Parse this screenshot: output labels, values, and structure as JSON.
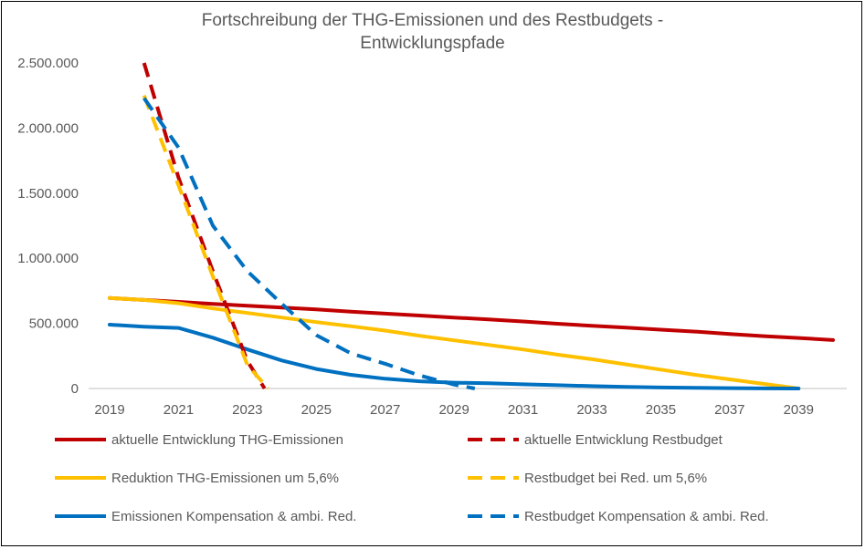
{
  "chart_data": {
    "type": "line",
    "title": "Fortschreibung der THG-Emissionen und des Restbudgets - Entwicklungspfade",
    "title_lines": [
      "Fortschreibung der THG-Emissionen und des Restbudgets -",
      "Entwicklungspfade"
    ],
    "xlabel": "",
    "ylabel": "",
    "xlim": [
      2019,
      2040
    ],
    "ylim": [
      0,
      2500000
    ],
    "x_ticks": [
      2019,
      2021,
      2023,
      2025,
      2027,
      2029,
      2031,
      2033,
      2035,
      2037,
      2039
    ],
    "x_tick_labels": [
      "2019",
      "2021",
      "2023",
      "2025",
      "2027",
      "2029",
      "2031",
      "2033",
      "2035",
      "2037",
      "2039"
    ],
    "y_ticks": [
      0,
      500000,
      1000000,
      1500000,
      2000000,
      2500000
    ],
    "y_tick_labels": [
      "0",
      "500.000",
      "1.000.000",
      "1.500.000",
      "2.000.000",
      "2.500.000"
    ],
    "grid": false,
    "legend_position": "bottom",
    "series": [
      {
        "name": "aktuelle Entwicklung  THG-Emissionen",
        "color": "#C00000",
        "style": "solid",
        "x": [
          2019,
          2020,
          2021,
          2022,
          2023,
          2024,
          2025,
          2026,
          2027,
          2028,
          2029,
          2030,
          2031,
          2032,
          2033,
          2034,
          2035,
          2036,
          2037,
          2038,
          2039,
          2040
        ],
        "values": [
          695000,
          680000,
          665000,
          650000,
          635000,
          622000,
          608000,
          590000,
          575000,
          560000,
          545000,
          530000,
          515000,
          497000,
          482000,
          467000,
          452000,
          437000,
          418000,
          402000,
          388000,
          372000
        ]
      },
      {
        "name": "aktuelle Entwicklung Restbudget",
        "color": "#C00000",
        "style": "dashed",
        "x": [
          2020,
          2021,
          2022,
          2023,
          2023.5
        ],
        "values": [
          2500000,
          1620000,
          900000,
          210000,
          0
        ]
      },
      {
        "name": "Reduktion THG-Emissionen um 5,6%",
        "color": "#FFC000",
        "style": "solid",
        "x": [
          2019,
          2020,
          2021,
          2022,
          2023,
          2024,
          2025,
          2026,
          2027,
          2028,
          2029,
          2030,
          2031,
          2032,
          2033,
          2034,
          2035,
          2036,
          2037,
          2038,
          2039
        ],
        "values": [
          695000,
          680000,
          655000,
          615000,
          580000,
          545000,
          510000,
          478000,
          445000,
          405000,
          370000,
          335000,
          300000,
          260000,
          225000,
          185000,
          145000,
          105000,
          70000,
          35000,
          0
        ]
      },
      {
        "name": "Restbudget bei Red. um 5,6%",
        "color": "#FFC000",
        "style": "dashed",
        "x": [
          2020,
          2021,
          2022,
          2023,
          2023.6
        ],
        "values": [
          2250000,
          1560000,
          860000,
          180000,
          0
        ]
      },
      {
        "name": "Emissionen Kompensation & ambi. Red.",
        "color": "#0070C0",
        "style": "solid",
        "x": [
          2019,
          2020,
          2021,
          2022,
          2023,
          2024,
          2025,
          2026,
          2027,
          2028,
          2029,
          2030,
          2031,
          2032,
          2033,
          2034,
          2035,
          2036,
          2037,
          2038,
          2039
        ],
        "values": [
          490000,
          475000,
          465000,
          390000,
          300000,
          215000,
          150000,
          105000,
          75000,
          55000,
          45000,
          40000,
          32000,
          25000,
          18000,
          12000,
          8000,
          5000,
          3000,
          1000,
          0
        ]
      },
      {
        "name": "Restbudget Kompensation & ambi. Red.",
        "color": "#0070C0",
        "style": "dashed",
        "x": [
          2020,
          2021,
          2022,
          2023,
          2024,
          2025,
          2026,
          2027,
          2028,
          2029,
          2029.6
        ],
        "values": [
          2230000,
          1850000,
          1250000,
          900000,
          650000,
          410000,
          270000,
          190000,
          100000,
          30000,
          0
        ]
      }
    ]
  }
}
